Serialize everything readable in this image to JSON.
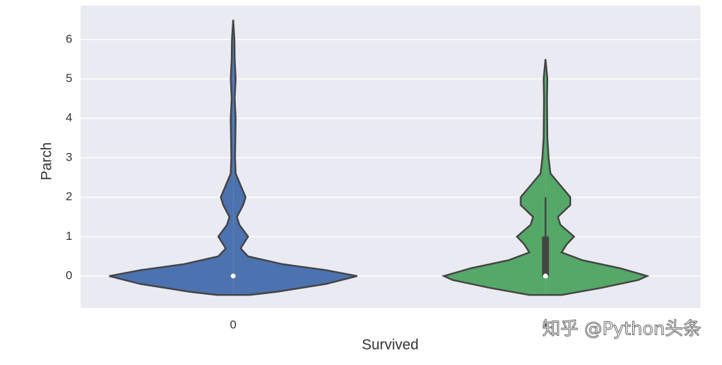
{
  "chart_data": {
    "type": "violin",
    "xlabel": "Survived",
    "ylabel": "Parch",
    "categories": [
      "0",
      "1"
    ],
    "ylim": [
      -0.81,
      6.86
    ],
    "yticks": [
      0,
      1,
      2,
      3,
      4,
      5,
      6
    ],
    "grid": true,
    "violins": [
      {
        "color": "#4c72b0",
        "density_y": [
          -0.48,
          -0.4,
          -0.2,
          0,
          0.15,
          0.3,
          0.5,
          0.7,
          1.0,
          1.3,
          1.5,
          1.8,
          2.0,
          2.3,
          2.6,
          3.0,
          4.0,
          4.5,
          5.0,
          5.5,
          6.0,
          6.5
        ],
        "density": [
          0.13,
          0.35,
          0.75,
          1.0,
          0.75,
          0.4,
          0.12,
          0.06,
          0.12,
          0.05,
          0.03,
          0.08,
          0.1,
          0.06,
          0.02,
          0.015,
          0.02,
          0.012,
          0.02,
          0.012,
          0.01,
          0
        ],
        "median": 0,
        "q1": 0,
        "q3": 0,
        "whisker_low": 0,
        "whisker_high": 0
      },
      {
        "color": "#55a868",
        "density_y": [
          -0.48,
          -0.3,
          -0.1,
          0,
          0.2,
          0.4,
          0.6,
          0.8,
          1.0,
          1.3,
          1.5,
          1.8,
          2.0,
          2.3,
          2.6,
          3.0,
          3.5,
          4.5,
          5.0,
          5.5
        ],
        "density": [
          0.13,
          0.45,
          0.75,
          0.82,
          0.6,
          0.3,
          0.13,
          0.17,
          0.23,
          0.12,
          0.1,
          0.2,
          0.2,
          0.12,
          0.04,
          0.025,
          0.015,
          0.012,
          0.015,
          0
        ],
        "median": 0,
        "q1": 0,
        "q3": 1,
        "whisker_low": 0,
        "whisker_high": 2
      }
    ]
  },
  "watermark": "知乎 @Python头条"
}
